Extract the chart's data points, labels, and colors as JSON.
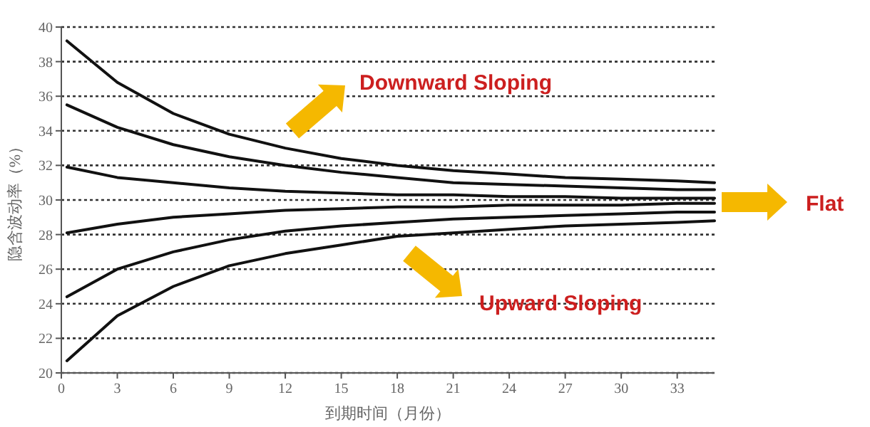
{
  "chart_data": {
    "type": "line",
    "xlabel": "到期时间（月份）",
    "ylabel": "隐含波动率（%）",
    "x": [
      0.3,
      3,
      6,
      9,
      12,
      15,
      18,
      21,
      24,
      27,
      30,
      33,
      35
    ],
    "series": [
      {
        "color": "#111111",
        "values": [
          39.2,
          36.8,
          35.0,
          33.8,
          33.0,
          32.4,
          32.0,
          31.7,
          31.5,
          31.3,
          31.2,
          31.1,
          31.0
        ]
      },
      {
        "color": "#111111",
        "values": [
          35.5,
          34.2,
          33.2,
          32.5,
          32.0,
          31.6,
          31.3,
          31.0,
          30.9,
          30.8,
          30.7,
          30.6,
          30.6
        ]
      },
      {
        "color": "#111111",
        "values": [
          31.9,
          31.3,
          31.0,
          30.7,
          30.5,
          30.4,
          30.3,
          30.3,
          30.2,
          30.2,
          30.1,
          30.1,
          30.1
        ]
      },
      {
        "color": "#111111",
        "values": [
          28.1,
          28.6,
          29.0,
          29.2,
          29.4,
          29.5,
          29.6,
          29.6,
          29.7,
          29.7,
          29.7,
          29.8,
          29.8
        ]
      },
      {
        "color": "#111111",
        "values": [
          24.4,
          26.0,
          27.0,
          27.7,
          28.2,
          28.5,
          28.7,
          28.9,
          29.0,
          29.1,
          29.2,
          29.3,
          29.3
        ]
      },
      {
        "color": "#111111",
        "values": [
          20.7,
          23.3,
          25.0,
          26.2,
          26.9,
          27.4,
          27.9,
          28.1,
          28.3,
          28.5,
          28.6,
          28.7,
          28.8
        ]
      }
    ],
    "xlim": [
      0,
      35
    ],
    "xticks": [
      0,
      3,
      6,
      9,
      12,
      15,
      18,
      21,
      24,
      27,
      30,
      33
    ],
    "ylim": [
      20,
      40
    ],
    "yticks": [
      20,
      22,
      24,
      26,
      28,
      30,
      32,
      34,
      36,
      38,
      40
    ],
    "grid": "y",
    "marker": "none",
    "line_style": "solid",
    "annotations": [
      "Downward Sloping",
      "Upward Sloping",
      "Flat"
    ]
  }
}
